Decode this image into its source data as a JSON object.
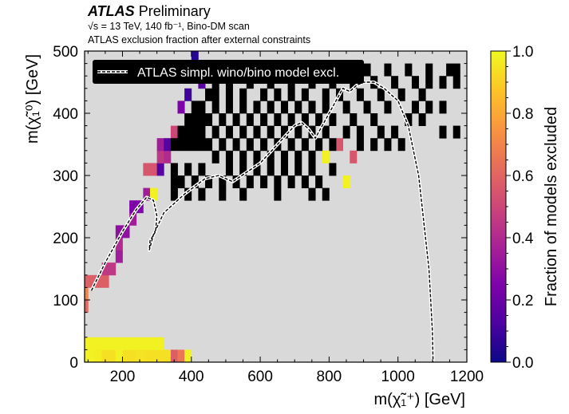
{
  "header": {
    "experiment": "ATLAS",
    "status": "Preliminary",
    "energy_line": "√s = 13 TeV, 140 fb⁻¹, Bino-DM scan",
    "description": "ATLAS exclusion fraction after external constraints"
  },
  "chart_data": {
    "type": "heatmap",
    "xlabel": "m(χ̃₁⁺) [GeV]",
    "ylabel": "m(χ̃₁⁰) [GeV]",
    "xlim": [
      90,
      1200
    ],
    "ylim": [
      0,
      500
    ],
    "x_ticks": [
      "200",
      "400",
      "600",
      "800",
      "1000",
      "1200"
    ],
    "y_ticks": [
      "0",
      "100",
      "200",
      "300",
      "400",
      "500"
    ],
    "background_color": "#d9d9d9",
    "colormap": "plasma",
    "colorbar": {
      "label": "Fraction of models excluded",
      "range": [
        0.0,
        1.0
      ],
      "ticks": [
        "0.0",
        "0.2",
        "0.4",
        "0.6",
        "0.8",
        "1.0"
      ]
    },
    "bin_width_x": 20,
    "bin_width_y": 20,
    "bins": [
      [
        100,
        20,
        0.98
      ],
      [
        120,
        20,
        0.98
      ],
      [
        140,
        20,
        0.97
      ],
      [
        160,
        20,
        0.94
      ],
      [
        180,
        20,
        0.94
      ],
      [
        200,
        20,
        0.98
      ],
      [
        220,
        20,
        0.94
      ],
      [
        240,
        20,
        0.94
      ],
      [
        260,
        20,
        0.95
      ],
      [
        280,
        20,
        0.94
      ],
      [
        300,
        20,
        0.94
      ],
      [
        320,
        20,
        0.94
      ],
      [
        340,
        20,
        0.94
      ],
      [
        360,
        20,
        0.58
      ],
      [
        380,
        20,
        0.66
      ],
      [
        400,
        20,
        0.98
      ],
      [
        100,
        40,
        0.98
      ],
      [
        120,
        40,
        0.98
      ],
      [
        140,
        40,
        0.98
      ],
      [
        160,
        40,
        0.98
      ],
      [
        180,
        40,
        0.98
      ],
      [
        200,
        40,
        0.98
      ],
      [
        220,
        40,
        0.98
      ],
      [
        240,
        40,
        0.98
      ],
      [
        260,
        40,
        0.98
      ],
      [
        280,
        40,
        0.98
      ],
      [
        300,
        40,
        0.98
      ],
      [
        320,
        40,
        0.98
      ],
      [
        100,
        100,
        0.62
      ],
      [
        100,
        120,
        0.7
      ],
      [
        100,
        140,
        0.58
      ],
      [
        120,
        140,
        0.58
      ],
      [
        140,
        140,
        0.58
      ],
      [
        160,
        140,
        0.58
      ],
      [
        160,
        160,
        0.45
      ],
      [
        180,
        160,
        0.45
      ],
      [
        200,
        180,
        0.35
      ],
      [
        200,
        200,
        0.4
      ],
      [
        200,
        220,
        0.3
      ],
      [
        220,
        220,
        0.3
      ],
      [
        240,
        240,
        0.35
      ],
      [
        240,
        260,
        0.25
      ],
      [
        260,
        260,
        0.25
      ],
      [
        280,
        280,
        0.35
      ],
      [
        300,
        280,
        0.98
      ],
      [
        280,
        320,
        0.55
      ],
      [
        300,
        320,
        0.55
      ],
      [
        320,
        320,
        0.15
      ],
      [
        320,
        340,
        0.45
      ],
      [
        340,
        340,
        0.4
      ],
      [
        320,
        360,
        0.35
      ],
      [
        340,
        360,
        0.15
      ],
      [
        360,
        380,
        0.5
      ],
      [
        380,
        420,
        0.25
      ],
      [
        400,
        440,
        0.1
      ],
      [
        440,
        460,
        0.15
      ],
      [
        460,
        480,
        0.1
      ],
      [
        420,
        500,
        0.05
      ],
      [
        860,
        300,
        0.98
      ],
      [
        840,
        360,
        0.55
      ],
      [
        800,
        340,
        0.98
      ],
      [
        880,
        340,
        0.55
      ],
      [
        480,
        340,
        0.0
      ],
      [
        520,
        340,
        0.0
      ],
      [
        560,
        340,
        0.0
      ],
      [
        600,
        340,
        0.0
      ],
      [
        640,
        340,
        0.0
      ],
      [
        680,
        340,
        0.0
      ],
      [
        720,
        340,
        0.0
      ],
      [
        760,
        340,
        0.0
      ],
      [
        520,
        320,
        0.0
      ],
      [
        560,
        320,
        0.0
      ],
      [
        600,
        320,
        0.0
      ],
      [
        640,
        320,
        0.0
      ],
      [
        680,
        320,
        0.0
      ],
      [
        720,
        320,
        0.0
      ],
      [
        760,
        320,
        0.0
      ],
      [
        440,
        320,
        0.0
      ],
      [
        400,
        320,
        0.0
      ],
      [
        360,
        320,
        0.0
      ],
      [
        360,
        300,
        0.0
      ],
      [
        380,
        300,
        0.0
      ],
      [
        420,
        300,
        0.0
      ],
      [
        460,
        300,
        0.0
      ],
      [
        500,
        300,
        0.0
      ],
      [
        540,
        300,
        0.0
      ],
      [
        580,
        300,
        0.0
      ],
      [
        620,
        300,
        0.0
      ],
      [
        660,
        300,
        0.0
      ],
      [
        700,
        300,
        0.0
      ],
      [
        740,
        300,
        0.0
      ],
      [
        780,
        300,
        0.0
      ],
      [
        820,
        320,
        0.0
      ],
      [
        360,
        280,
        0.0
      ],
      [
        400,
        280,
        0.0
      ],
      [
        440,
        280,
        0.0
      ],
      [
        500,
        280,
        0.0
      ],
      [
        560,
        280,
        0.0
      ],
      [
        660,
        280,
        0.0
      ],
      [
        760,
        280,
        0.0
      ],
      [
        800,
        280,
        0.0
      ],
      [
        360,
        360,
        0.0
      ],
      [
        380,
        360,
        0.0
      ],
      [
        400,
        360,
        0.0
      ],
      [
        420,
        360,
        0.0
      ],
      [
        440,
        360,
        0.0
      ],
      [
        460,
        360,
        0.0
      ],
      [
        500,
        360,
        0.0
      ],
      [
        540,
        360,
        0.0
      ],
      [
        580,
        360,
        0.0
      ],
      [
        620,
        360,
        0.0
      ],
      [
        660,
        360,
        0.0
      ],
      [
        700,
        360,
        0.0
      ],
      [
        740,
        360,
        0.0
      ],
      [
        780,
        360,
        0.0
      ],
      [
        820,
        360,
        0.0
      ],
      [
        900,
        360,
        0.0
      ],
      [
        940,
        360,
        0.0
      ],
      [
        980,
        360,
        0.0
      ],
      [
        1020,
        360,
        0.0
      ],
      [
        380,
        380,
        0.0
      ],
      [
        400,
        380,
        0.0
      ],
      [
        420,
        380,
        0.0
      ],
      [
        440,
        380,
        0.0
      ],
      [
        480,
        380,
        0.0
      ],
      [
        520,
        380,
        0.0
      ],
      [
        560,
        380,
        0.0
      ],
      [
        600,
        380,
        0.0
      ],
      [
        640,
        380,
        0.0
      ],
      [
        680,
        380,
        0.0
      ],
      [
        720,
        380,
        0.0
      ],
      [
        760,
        380,
        0.0
      ],
      [
        800,
        380,
        0.0
      ],
      [
        860,
        380,
        0.0
      ],
      [
        900,
        380,
        0.0
      ],
      [
        960,
        380,
        0.0
      ],
      [
        1000,
        380,
        0.0
      ],
      [
        400,
        400,
        0.0
      ],
      [
        420,
        400,
        0.0
      ],
      [
        440,
        400,
        0.0
      ],
      [
        460,
        400,
        0.0
      ],
      [
        500,
        400,
        0.0
      ],
      [
        540,
        400,
        0.0
      ],
      [
        580,
        400,
        0.0
      ],
      [
        620,
        400,
        0.0
      ],
      [
        660,
        400,
        0.0
      ],
      [
        700,
        400,
        0.0
      ],
      [
        740,
        400,
        0.0
      ],
      [
        780,
        400,
        0.0
      ],
      [
        820,
        400,
        0.0
      ],
      [
        880,
        400,
        0.0
      ],
      [
        940,
        400,
        0.0
      ],
      [
        1040,
        400,
        0.0
      ],
      [
        420,
        420,
        0.0
      ],
      [
        440,
        420,
        0.0
      ],
      [
        480,
        420,
        0.0
      ],
      [
        520,
        420,
        0.0
      ],
      [
        560,
        420,
        0.0
      ],
      [
        600,
        420,
        0.0
      ],
      [
        640,
        420,
        0.0
      ],
      [
        680,
        420,
        0.0
      ],
      [
        720,
        420,
        0.0
      ],
      [
        760,
        420,
        0.0
      ],
      [
        800,
        420,
        0.0
      ],
      [
        860,
        420,
        0.0
      ],
      [
        920,
        420,
        0.0
      ],
      [
        980,
        420,
        0.0
      ],
      [
        460,
        440,
        0.0
      ],
      [
        480,
        440,
        0.0
      ],
      [
        520,
        440,
        0.0
      ],
      [
        560,
        440,
        0.0
      ],
      [
        620,
        440,
        0.0
      ],
      [
        660,
        440,
        0.0
      ],
      [
        700,
        440,
        0.0
      ],
      [
        740,
        440,
        0.0
      ],
      [
        800,
        440,
        0.0
      ],
      [
        840,
        440,
        0.0
      ],
      [
        900,
        440,
        0.0
      ],
      [
        960,
        440,
        0.0
      ],
      [
        1020,
        440,
        0.0
      ],
      [
        1080,
        440,
        0.0
      ],
      [
        480,
        460,
        0.0
      ],
      [
        520,
        460,
        0.0
      ],
      [
        580,
        460,
        0.0
      ],
      [
        640,
        460,
        0.0
      ],
      [
        700,
        460,
        0.0
      ],
      [
        760,
        460,
        0.0
      ],
      [
        820,
        460,
        0.0
      ],
      [
        880,
        460,
        0.0
      ],
      [
        940,
        460,
        0.0
      ],
      [
        1000,
        460,
        0.0
      ],
      [
        1060,
        460,
        0.0
      ],
      [
        1100,
        460,
        0.0
      ],
      [
        1140,
        460,
        0.0
      ],
      [
        1180,
        460,
        0.0
      ],
      [
        440,
        480,
        0.0
      ],
      [
        500,
        480,
        0.0
      ],
      [
        560,
        480,
        0.0
      ],
      [
        620,
        480,
        0.0
      ],
      [
        680,
        480,
        0.0
      ],
      [
        740,
        480,
        0.0
      ],
      [
        800,
        480,
        0.0
      ],
      [
        860,
        480,
        0.0
      ],
      [
        920,
        480,
        0.0
      ],
      [
        980,
        480,
        0.0
      ],
      [
        1040,
        480,
        0.0
      ],
      [
        1100,
        480,
        0.0
      ],
      [
        1160,
        480,
        0.0
      ],
      [
        1180,
        480,
        0.0
      ],
      [
        1060,
        420,
        0.0
      ],
      [
        1100,
        420,
        0.0
      ],
      [
        1140,
        420,
        0.0
      ],
      [
        1080,
        400,
        0.0
      ],
      [
        1180,
        380,
        0.0
      ],
      [
        1140,
        380,
        0.0
      ]
    ],
    "excl_contour": {
      "legend": "ATLAS simpl. wino/bino model excl.",
      "x": [
        110,
        150,
        200,
        240,
        270,
        290,
        300,
        296,
        280,
        278,
        290,
        320,
        380,
        440,
        480,
        520,
        600,
        650,
        700,
        720,
        740,
        760,
        800,
        840,
        860,
        880,
        900,
        930,
        960,
        1000,
        1030,
        1060,
        1080,
        1090,
        1095,
        1100,
        1102
      ],
      "y": [
        115,
        160,
        210,
        245,
        265,
        260,
        235,
        210,
        195,
        180,
        205,
        240,
        270,
        295,
        300,
        290,
        320,
        350,
        380,
        385,
        375,
        360,
        400,
        440,
        435,
        445,
        450,
        450,
        440,
        420,
        380,
        300,
        200,
        150,
        100,
        50,
        0
      ]
    }
  }
}
